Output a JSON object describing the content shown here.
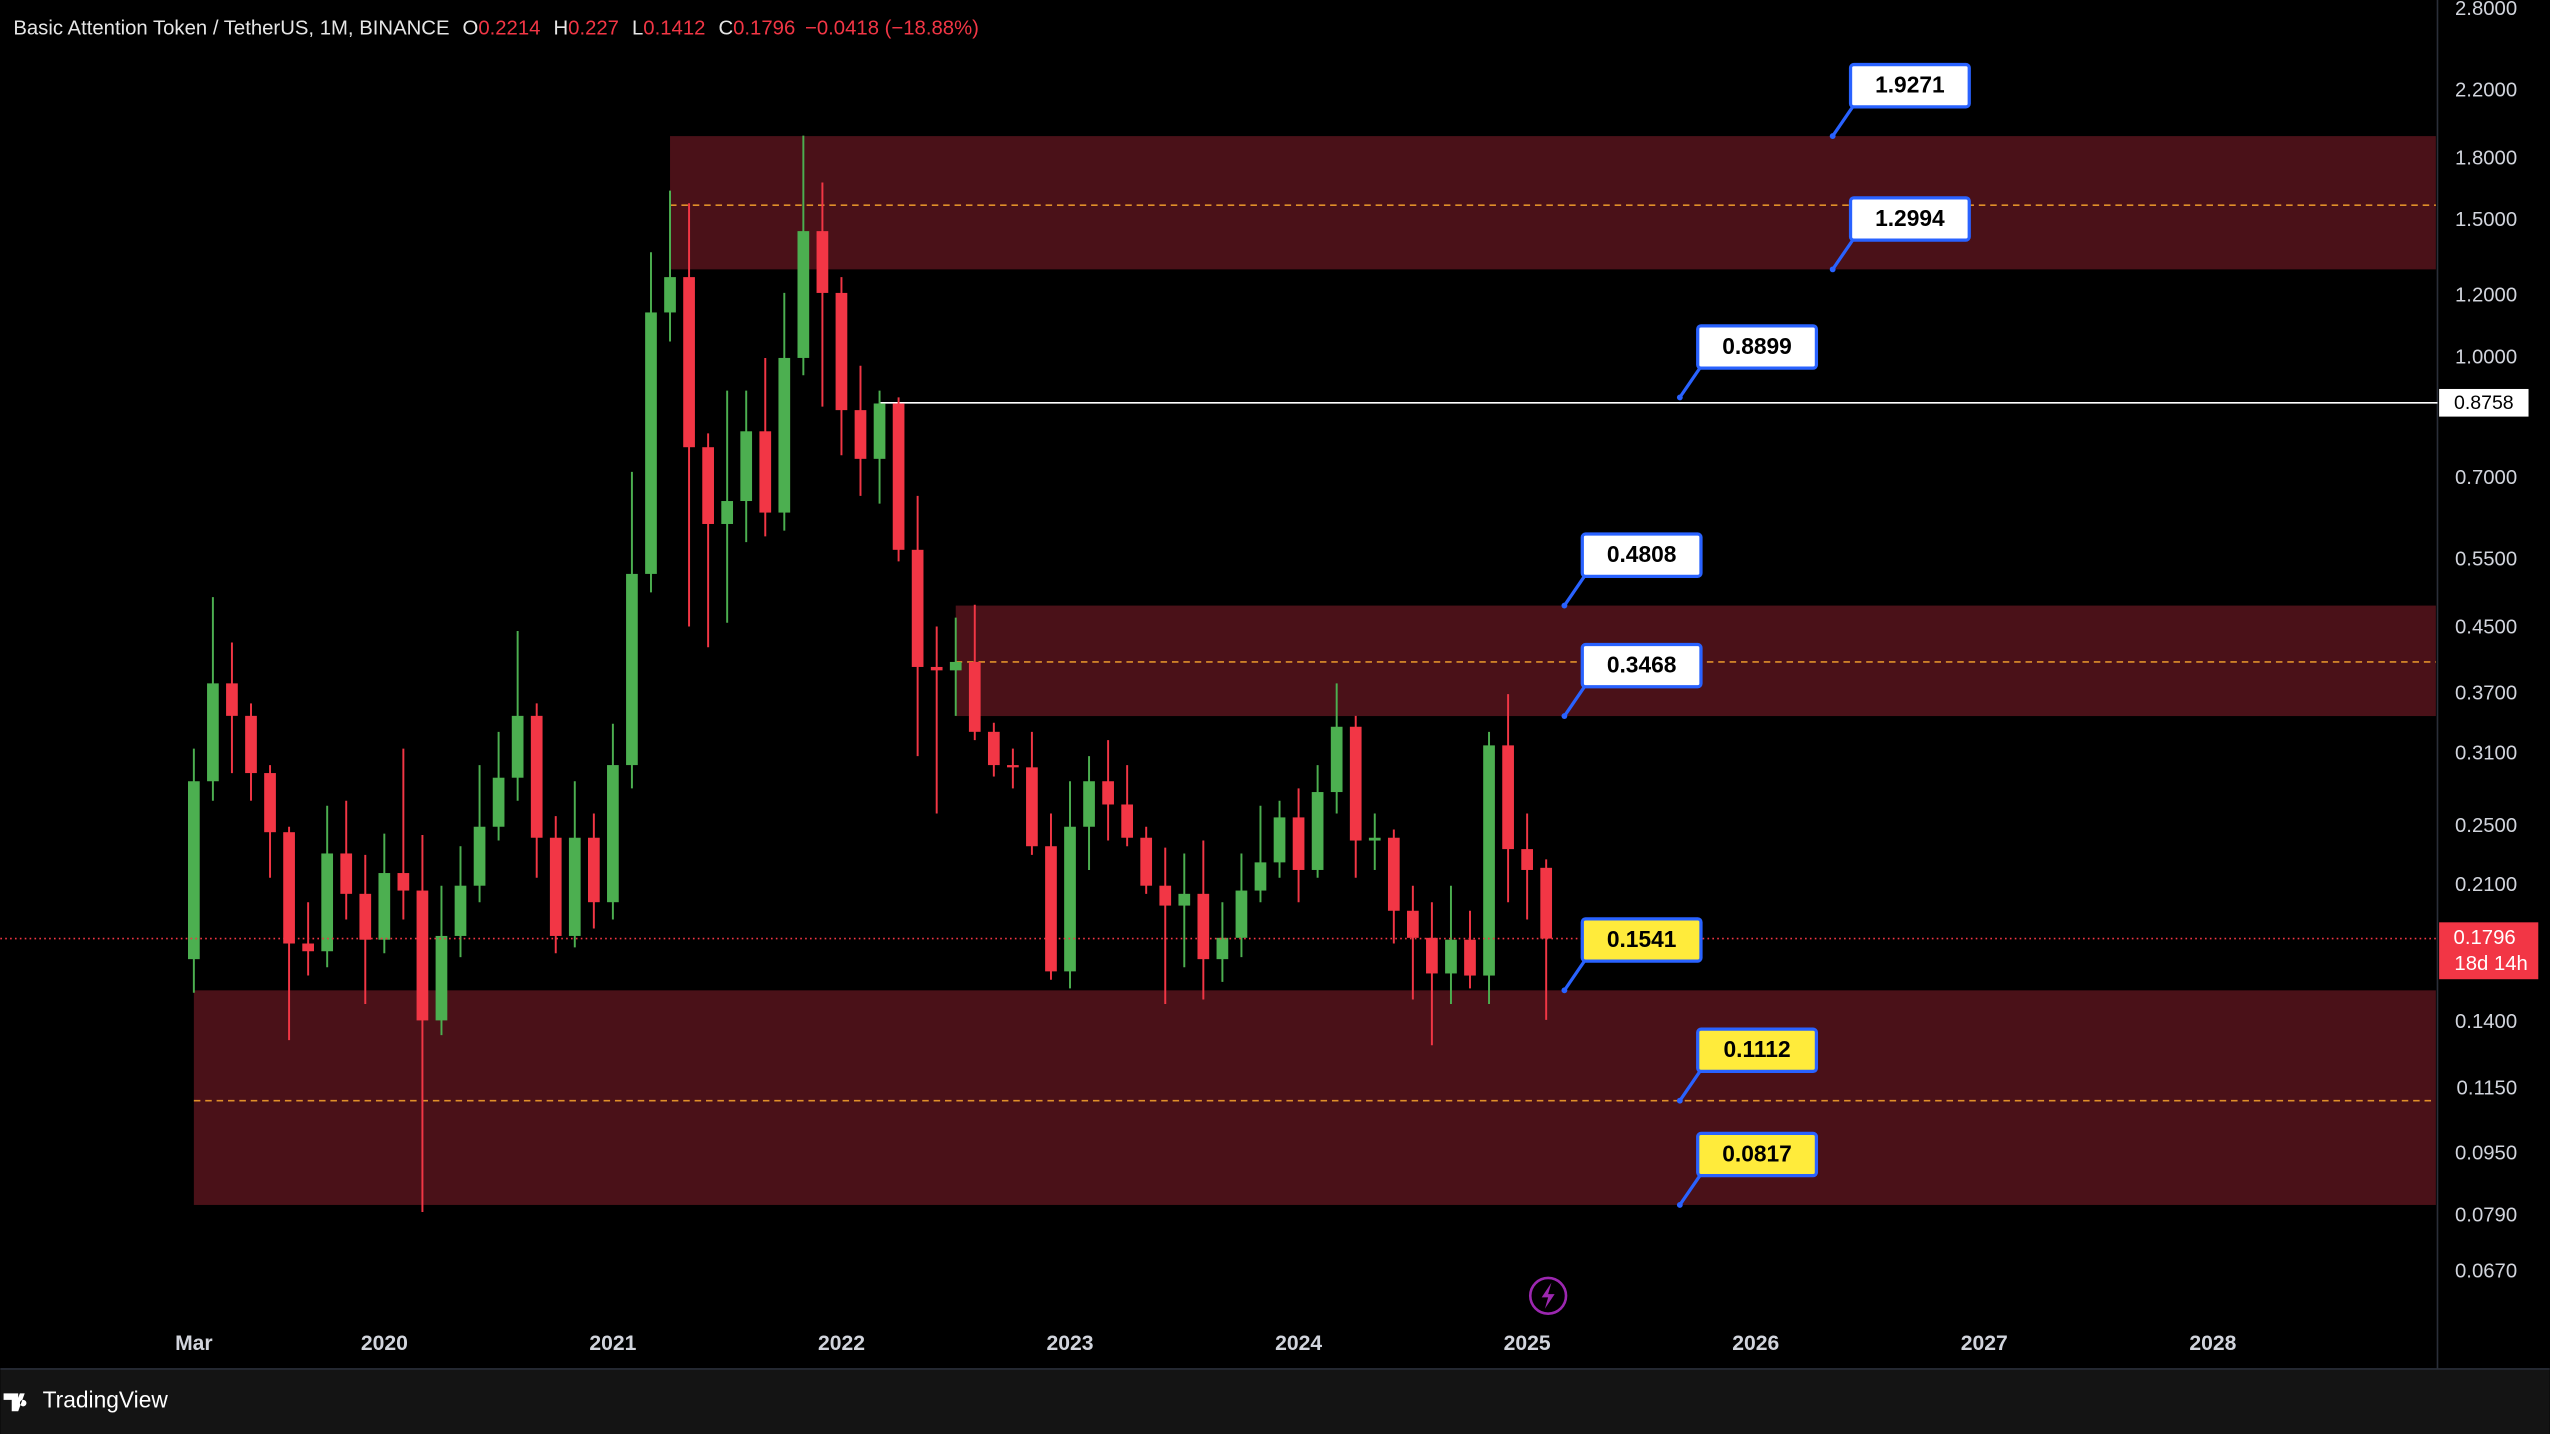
{
  "chart_data": {
    "type": "candlestick",
    "symbol": "Basic Attention Token / TetherUS, 1M, BINANCE",
    "ohlc_labels": [
      "O",
      "H",
      "L",
      "C"
    ],
    "change": "−0.0418 (−18.88%)",
    "countdown": "18d 14h",
    "brand": "TradingView",
    "log_scale": true,
    "grid": false,
    "up_color": "#4caf50",
    "down_color": "#f23645",
    "x": [
      2019.1667,
      2019.25,
      2019.3333,
      2019.4167,
      2019.5,
      2019.5833,
      2019.6667,
      2019.75,
      2019.8333,
      2019.9167,
      2020,
      2020.0833,
      2020.1667,
      2020.25,
      2020.3333,
      2020.4167,
      2020.5,
      2020.5833,
      2020.6667,
      2020.75,
      2020.8333,
      2020.9167,
      2021,
      2021.0833,
      2021.1667,
      2021.25,
      2021.3333,
      2021.4167,
      2021.5,
      2021.5833,
      2021.6667,
      2021.75,
      2021.8333,
      2021.9167,
      2022,
      2022.0833,
      2022.1667,
      2022.25,
      2022.3333,
      2022.4167,
      2022.5,
      2022.5833,
      2022.6667,
      2022.75,
      2022.8333,
      2022.9167,
      2023,
      2023.0833,
      2023.1667,
      2023.25,
      2023.3333,
      2023.4167,
      2023.5,
      2023.5833,
      2023.6667,
      2023.75,
      2023.8333,
      2023.9167,
      2024,
      2024.0833,
      2024.1667,
      2024.25,
      2024.3333,
      2024.4167,
      2024.5,
      2024.5833,
      2024.6667,
      2024.75,
      2024.8333,
      2024.9167,
      2025,
      2025.0833
    ],
    "open": [
      0.169,
      0.286,
      0.382,
      0.347,
      0.293,
      0.246,
      0.177,
      0.173,
      0.231,
      0.205,
      0.179,
      0.218,
      0.207,
      0.141,
      0.181,
      0.21,
      0.25,
      0.289,
      0.347,
      0.242,
      0.181,
      0.242,
      0.2,
      0.3,
      0.528,
      1.144,
      1.27,
      0.768,
      0.612,
      0.655,
      0.805,
      0.633,
      1.0,
      1.455,
      1.212,
      0.857,
      0.742,
      0.874,
      0.567,
      0.401,
      0.397,
      0.407,
      0.331,
      0.3,
      0.298,
      0.236,
      0.163,
      0.25,
      0.286,
      0.267,
      0.242,
      0.21,
      0.198,
      0.205,
      0.169,
      0.18,
      0.207,
      0.225,
      0.257,
      0.22,
      0.277,
      0.336,
      0.24,
      0.242,
      0.195,
      0.18,
      0.162,
      0.179,
      0.161,
      0.318,
      0.234,
      0.2214
    ],
    "high": [
      0.315,
      0.493,
      0.431,
      0.36,
      0.3,
      0.25,
      0.2,
      0.266,
      0.27,
      0.23,
      0.245,
      0.315,
      0.244,
      0.21,
      0.236,
      0.3,
      0.331,
      0.446,
      0.36,
      0.258,
      0.286,
      0.26,
      0.339,
      0.714,
      1.367,
      1.64,
      1.58,
      0.8,
      0.908,
      0.908,
      1.0,
      1.212,
      1.93,
      1.68,
      1.27,
      0.977,
      0.908,
      0.89,
      0.665,
      0.452,
      0.464,
      0.482,
      0.34,
      0.315,
      0.331,
      0.26,
      0.286,
      0.308,
      0.323,
      0.3,
      0.25,
      0.235,
      0.231,
      0.24,
      0.2,
      0.231,
      0.266,
      0.27,
      0.28,
      0.3,
      0.382,
      0.347,
      0.26,
      0.248,
      0.21,
      0.2,
      0.21,
      0.195,
      0.331,
      0.37,
      0.26,
      0.227
    ],
    "low": [
      0.153,
      0.27,
      0.293,
      0.27,
      0.215,
      0.133,
      0.161,
      0.165,
      0.19,
      0.148,
      0.172,
      0.19,
      0.08,
      0.135,
      0.17,
      0.2,
      0.24,
      0.27,
      0.215,
      0.172,
      0.175,
      0.185,
      0.19,
      0.28,
      0.5,
      1.05,
      0.452,
      0.425,
      0.457,
      0.58,
      0.59,
      0.6,
      0.95,
      0.866,
      0.75,
      0.665,
      0.65,
      0.548,
      0.308,
      0.26,
      0.347,
      0.323,
      0.29,
      0.28,
      0.23,
      0.159,
      0.155,
      0.22,
      0.24,
      0.236,
      0.205,
      0.148,
      0.165,
      0.15,
      0.158,
      0.17,
      0.2,
      0.215,
      0.2,
      0.215,
      0.26,
      0.215,
      0.22,
      0.177,
      0.15,
      0.131,
      0.148,
      0.155,
      0.148,
      0.2,
      0.19,
      0.1412
    ],
    "close": [
      0.286,
      0.382,
      0.347,
      0.293,
      0.246,
      0.177,
      0.173,
      0.231,
      0.205,
      0.179,
      0.218,
      0.207,
      0.141,
      0.181,
      0.21,
      0.25,
      0.289,
      0.347,
      0.242,
      0.181,
      0.242,
      0.2,
      0.3,
      0.528,
      1.144,
      1.27,
      0.768,
      0.612,
      0.655,
      0.805,
      0.633,
      1.0,
      1.455,
      1.212,
      0.857,
      0.742,
      0.874,
      0.567,
      0.401,
      0.397,
      0.407,
      0.331,
      0.3,
      0.298,
      0.236,
      0.163,
      0.25,
      0.286,
      0.267,
      0.242,
      0.21,
      0.198,
      0.205,
      0.169,
      0.18,
      0.207,
      0.225,
      0.257,
      0.22,
      0.277,
      0.336,
      0.24,
      0.242,
      0.195,
      0.18,
      0.162,
      0.179,
      0.161,
      0.318,
      0.234,
      0.22,
      0.1796
    ],
    "xlim": [
      2018.32,
      2028.99
    ],
    "xticks": [
      {
        "value": 2019.1667,
        "label": "Mar"
      },
      2020,
      2021,
      2022,
      2023,
      2024,
      2025,
      2026,
      2027,
      2028
    ],
    "ylim": [
      0.0503,
      2.882
    ],
    "yticks": [
      {
        "value": 2.8,
        "label": "2.8000"
      },
      {
        "value": 2.2,
        "label": "2.2000"
      },
      {
        "value": 1.8,
        "label": "1.8000"
      },
      {
        "value": 1.5,
        "label": "1.5000"
      },
      {
        "value": 1.2,
        "label": "1.2000"
      },
      {
        "value": 1,
        "label": "1.0000"
      },
      {
        "value": 0.7,
        "label": "0.7000"
      },
      {
        "value": 0.55,
        "label": "0.5500"
      },
      {
        "value": 0.45,
        "label": "0.4500"
      },
      {
        "value": 0.37,
        "label": "0.3700"
      },
      {
        "value": 0.31,
        "label": "0.3100"
      },
      {
        "value": 0.25,
        "label": "0.2500"
      },
      {
        "value": 0.21,
        "label": "0.2100"
      },
      {
        "value": 0.14,
        "label": "0.1400"
      },
      {
        "value": 0.115,
        "label": "0.1150"
      },
      {
        "value": 0.095,
        "label": "0.0950"
      },
      {
        "value": 0.079,
        "label": "0.0790"
      },
      {
        "value": 0.067,
        "label": "0.0670"
      }
    ],
    "zone_color": "#4a1118",
    "mid_color": "#e0902a",
    "zones": [
      {
        "top": 1.9271,
        "bottom": 1.2994,
        "mid": 1.571,
        "start": 2021.25
      },
      {
        "top": 0.4808,
        "bottom": 0.3468,
        "mid": 0.407,
        "start": 2022.5
      },
      {
        "top": 0.1541,
        "bottom": 0.0817,
        "mid": 0.1112,
        "start": 2019.1667
      }
    ],
    "hline": {
      "value": 0.8758,
      "start": 2022.1667,
      "color": "#ffffff"
    },
    "callouts": [
      {
        "value": 1.9271,
        "color": "#ffffff"
      },
      {
        "value": 1.2994,
        "color": "#ffffff"
      },
      {
        "value": 0.8899,
        "color": "#ffffff"
      },
      {
        "value": 0.4808,
        "color": "#ffffff"
      },
      {
        "value": 0.3468,
        "color": "#ffffff"
      },
      {
        "value": 0.1541,
        "color": "#ffeb3b"
      },
      {
        "value": 0.1112,
        "color": "#ffeb3b"
      },
      {
        "value": 0.0817,
        "color": "#ffeb3b"
      }
    ]
  }
}
